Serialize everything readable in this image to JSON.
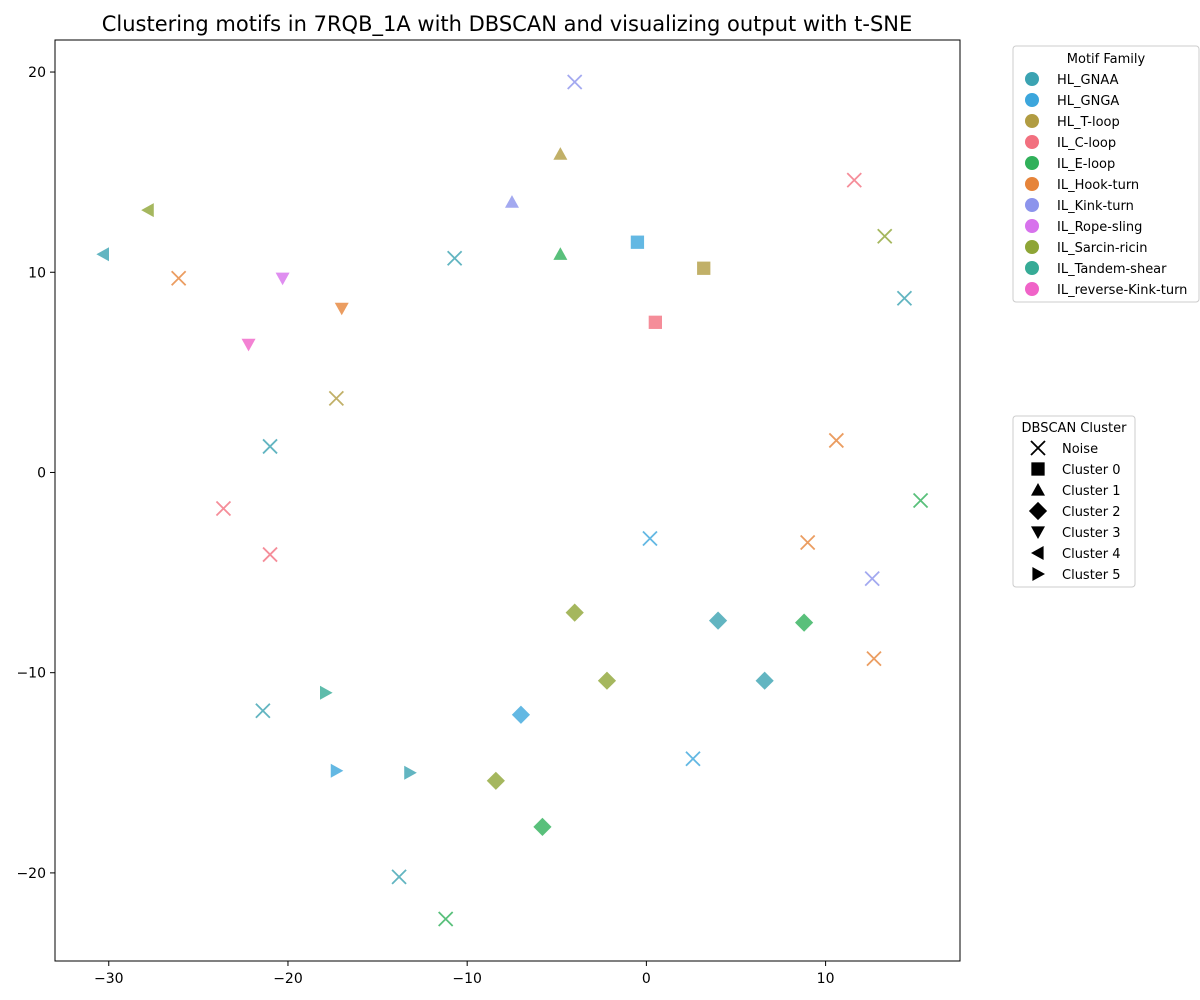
{
  "chart_data": {
    "type": "scatter",
    "title": "Clustering motifs in 7RQB_1A with DBSCAN and visualizing output with t-SNE",
    "xlabel": "",
    "ylabel": "",
    "xlim": [
      -33.0,
      17.5
    ],
    "ylim": [
      -24.4,
      21.6
    ],
    "xticks": [
      -30,
      -20,
      -10,
      0,
      10
    ],
    "yticks": [
      -20,
      -10,
      0,
      10,
      20
    ],
    "grid": false,
    "families": [
      {
        "name": "HL_GNAA",
        "color": "#3ba3b2"
      },
      {
        "name": "HL_GNGA",
        "color": "#3ca6dc"
      },
      {
        "name": "HL_T-loop",
        "color": "#b19c42"
      },
      {
        "name": "IL_C-loop",
        "color": "#f2707f"
      },
      {
        "name": "IL_E-loop",
        "color": "#30b05a"
      },
      {
        "name": "IL_Hook-turn",
        "color": "#e6843a"
      },
      {
        "name": "IL_Kink-turn",
        "color": "#8c94ec"
      },
      {
        "name": "IL_Rope-sling",
        "color": "#d772ec"
      },
      {
        "name": "IL_Sarcin-ricin",
        "color": "#8ea536"
      },
      {
        "name": "IL_Tandem-shear",
        "color": "#36ab96"
      },
      {
        "name": "IL_reverse-Kink-turn",
        "color": "#f063c8"
      }
    ],
    "clusters": [
      {
        "name": "Noise",
        "marker": "x"
      },
      {
        "name": "Cluster 0",
        "marker": "square"
      },
      {
        "name": "Cluster 1",
        "marker": "triangle-up"
      },
      {
        "name": "Cluster 2",
        "marker": "diamond"
      },
      {
        "name": "Cluster 3",
        "marker": "triangle-down"
      },
      {
        "name": "Cluster 4",
        "marker": "triangle-left"
      },
      {
        "name": "Cluster 5",
        "marker": "triangle-right"
      }
    ],
    "points": [
      {
        "x": -4.0,
        "y": 19.5,
        "family": "IL_Kink-turn",
        "cluster": "Noise"
      },
      {
        "x": -10.7,
        "y": 10.7,
        "family": "HL_GNAA",
        "cluster": "Noise"
      },
      {
        "x": -26.1,
        "y": 9.7,
        "family": "IL_Hook-turn",
        "cluster": "Noise"
      },
      {
        "x": 11.6,
        "y": 14.6,
        "family": "IL_C-loop",
        "cluster": "Noise"
      },
      {
        "x": 13.3,
        "y": 11.8,
        "family": "IL_Sarcin-ricin",
        "cluster": "Noise"
      },
      {
        "x": 14.4,
        "y": 8.7,
        "family": "HL_GNAA",
        "cluster": "Noise"
      },
      {
        "x": -17.3,
        "y": 3.7,
        "family": "HL_T-loop",
        "cluster": "Noise"
      },
      {
        "x": -21.0,
        "y": 1.3,
        "family": "HL_GNAA",
        "cluster": "Noise"
      },
      {
        "x": -23.6,
        "y": -1.8,
        "family": "IL_C-loop",
        "cluster": "Noise"
      },
      {
        "x": -21.0,
        "y": -4.1,
        "family": "IL_C-loop",
        "cluster": "Noise"
      },
      {
        "x": 10.6,
        "y": 1.6,
        "family": "IL_Hook-turn",
        "cluster": "Noise"
      },
      {
        "x": 15.3,
        "y": -1.4,
        "family": "IL_E-loop",
        "cluster": "Noise"
      },
      {
        "x": 0.2,
        "y": -3.3,
        "family": "HL_GNGA",
        "cluster": "Noise"
      },
      {
        "x": 9.0,
        "y": -3.5,
        "family": "IL_Hook-turn",
        "cluster": "Noise"
      },
      {
        "x": 12.6,
        "y": -5.3,
        "family": "IL_Kink-turn",
        "cluster": "Noise"
      },
      {
        "x": 12.7,
        "y": -9.3,
        "family": "IL_Hook-turn",
        "cluster": "Noise"
      },
      {
        "x": -21.4,
        "y": -11.9,
        "family": "HL_GNAA",
        "cluster": "Noise"
      },
      {
        "x": 2.6,
        "y": -14.3,
        "family": "HL_GNGA",
        "cluster": "Noise"
      },
      {
        "x": -13.8,
        "y": -20.2,
        "family": "HL_GNAA",
        "cluster": "Noise"
      },
      {
        "x": -11.2,
        "y": -22.3,
        "family": "IL_E-loop",
        "cluster": "Noise"
      },
      {
        "x": -0.5,
        "y": 11.5,
        "family": "HL_GNGA",
        "cluster": "Cluster 0"
      },
      {
        "x": 3.2,
        "y": 10.2,
        "family": "HL_T-loop",
        "cluster": "Cluster 0"
      },
      {
        "x": 0.5,
        "y": 7.5,
        "family": "IL_C-loop",
        "cluster": "Cluster 0"
      },
      {
        "x": -4.8,
        "y": 15.9,
        "family": "HL_T-loop",
        "cluster": "Cluster 1"
      },
      {
        "x": -7.5,
        "y": 13.5,
        "family": "IL_Kink-turn",
        "cluster": "Cluster 1"
      },
      {
        "x": -4.8,
        "y": 10.9,
        "family": "IL_E-loop",
        "cluster": "Cluster 1"
      },
      {
        "x": -4.0,
        "y": -7.0,
        "family": "IL_Sarcin-ricin",
        "cluster": "Cluster 2"
      },
      {
        "x": 4.0,
        "y": -7.4,
        "family": "HL_GNAA",
        "cluster": "Cluster 2"
      },
      {
        "x": 8.8,
        "y": -7.5,
        "family": "IL_E-loop",
        "cluster": "Cluster 2"
      },
      {
        "x": -2.2,
        "y": -10.4,
        "family": "IL_Sarcin-ricin",
        "cluster": "Cluster 2"
      },
      {
        "x": 6.6,
        "y": -10.4,
        "family": "HL_GNAA",
        "cluster": "Cluster 2"
      },
      {
        "x": -7.0,
        "y": -12.1,
        "family": "HL_GNGA",
        "cluster": "Cluster 2"
      },
      {
        "x": -8.4,
        "y": -15.4,
        "family": "IL_Sarcin-ricin",
        "cluster": "Cluster 2"
      },
      {
        "x": -5.8,
        "y": -17.7,
        "family": "IL_E-loop",
        "cluster": "Cluster 2"
      },
      {
        "x": -20.3,
        "y": 9.7,
        "family": "IL_Rope-sling",
        "cluster": "Cluster 3"
      },
      {
        "x": -17.0,
        "y": 8.2,
        "family": "IL_Hook-turn",
        "cluster": "Cluster 3"
      },
      {
        "x": -22.2,
        "y": 6.4,
        "family": "IL_reverse-Kink-turn",
        "cluster": "Cluster 3"
      },
      {
        "x": -27.8,
        "y": 13.1,
        "family": "IL_Sarcin-ricin",
        "cluster": "Cluster 4"
      },
      {
        "x": -30.3,
        "y": 10.9,
        "family": "HL_GNAA",
        "cluster": "Cluster 4"
      },
      {
        "x": -17.9,
        "y": -11.0,
        "family": "IL_Tandem-shear",
        "cluster": "Cluster 5"
      },
      {
        "x": -17.3,
        "y": -14.9,
        "family": "HL_GNGA",
        "cluster": "Cluster 5"
      },
      {
        "x": -13.2,
        "y": -15.0,
        "family": "HL_GNAA",
        "cluster": "Cluster 5"
      }
    ],
    "legend_family": {
      "title": "Motif Family",
      "placement": "outside-upper-right"
    },
    "legend_cluster": {
      "title": "DBSCAN Cluster",
      "placement": "outside-right"
    }
  }
}
